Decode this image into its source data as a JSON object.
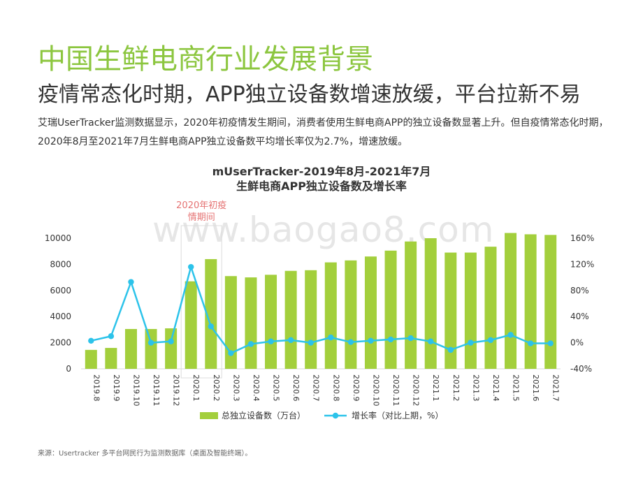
{
  "page": {
    "title": "中国生鲜电商行业发展背景",
    "subtitle": "疫情常态化时期，APP独立设备数增速放缓，平台拉新不易",
    "description": "艾瑞UserTracker监测数据显示，2020年初疫情发生期间，消费者使用生鲜电商APP的独立设备数显著上升。但自疫情常态化时期，2020年8月至2021年7月生鲜电商APP独立设备数平均增长率仅为2.7%，增速放缓。",
    "watermark": "www.baogao8.com",
    "source": "来源：Usertracker 多平台网民行为监测数据库（桌面及智能终端）。"
  },
  "chart_data": {
    "type": "bar",
    "title_line1": "mUserTracker-2019年8月-2021年7月",
    "title_line2": "生鲜电商APP独立设备数及增长率",
    "categories": [
      "2019.8",
      "2019.9",
      "2019.10",
      "2019.11",
      "2019.12",
      "2020.1",
      "2020.2",
      "2020.3",
      "2020.4",
      "2020.5",
      "2020.6",
      "2020.7",
      "2020.8",
      "2020.9",
      "2020.10",
      "2020.11",
      "2020.12",
      "2021.1",
      "2021.2",
      "2021.3",
      "2021.4",
      "2021.5",
      "2021.6",
      "2021.7"
    ],
    "series": [
      {
        "name": "总独立设备数（万台）",
        "type": "bar",
        "axis": "left",
        "color": "#a3cf3c",
        "values": [
          1450,
          1600,
          3050,
          3050,
          3100,
          6700,
          8400,
          7100,
          7000,
          7200,
          7500,
          7550,
          8150,
          8300,
          8600,
          9050,
          9750,
          10000,
          8900,
          8900,
          9350,
          10400,
          10300,
          10250
        ]
      },
      {
        "name": "增长率（对比上期，%）",
        "type": "line",
        "axis": "right",
        "color": "#2cc3ea",
        "values": [
          3,
          10,
          93,
          0,
          2,
          116,
          25,
          -16,
          -2,
          2,
          4,
          0,
          8,
          1,
          3,
          5,
          7,
          2,
          -11,
          0,
          4,
          12,
          -1,
          -1
        ]
      }
    ],
    "left_axis": {
      "min": 0,
      "max": 10000,
      "ticks": [
        0,
        2000,
        4000,
        6000,
        8000,
        10000
      ]
    },
    "right_axis": {
      "min": -40,
      "max": 160,
      "ticks": [
        "-40%",
        "0%",
        "40%",
        "80%",
        "120%",
        "160%"
      ]
    },
    "annotation": {
      "category": "2020.1",
      "line1": "2020年初疫",
      "line2": "情期间",
      "color": "#e57373"
    },
    "legend": "bottom"
  }
}
